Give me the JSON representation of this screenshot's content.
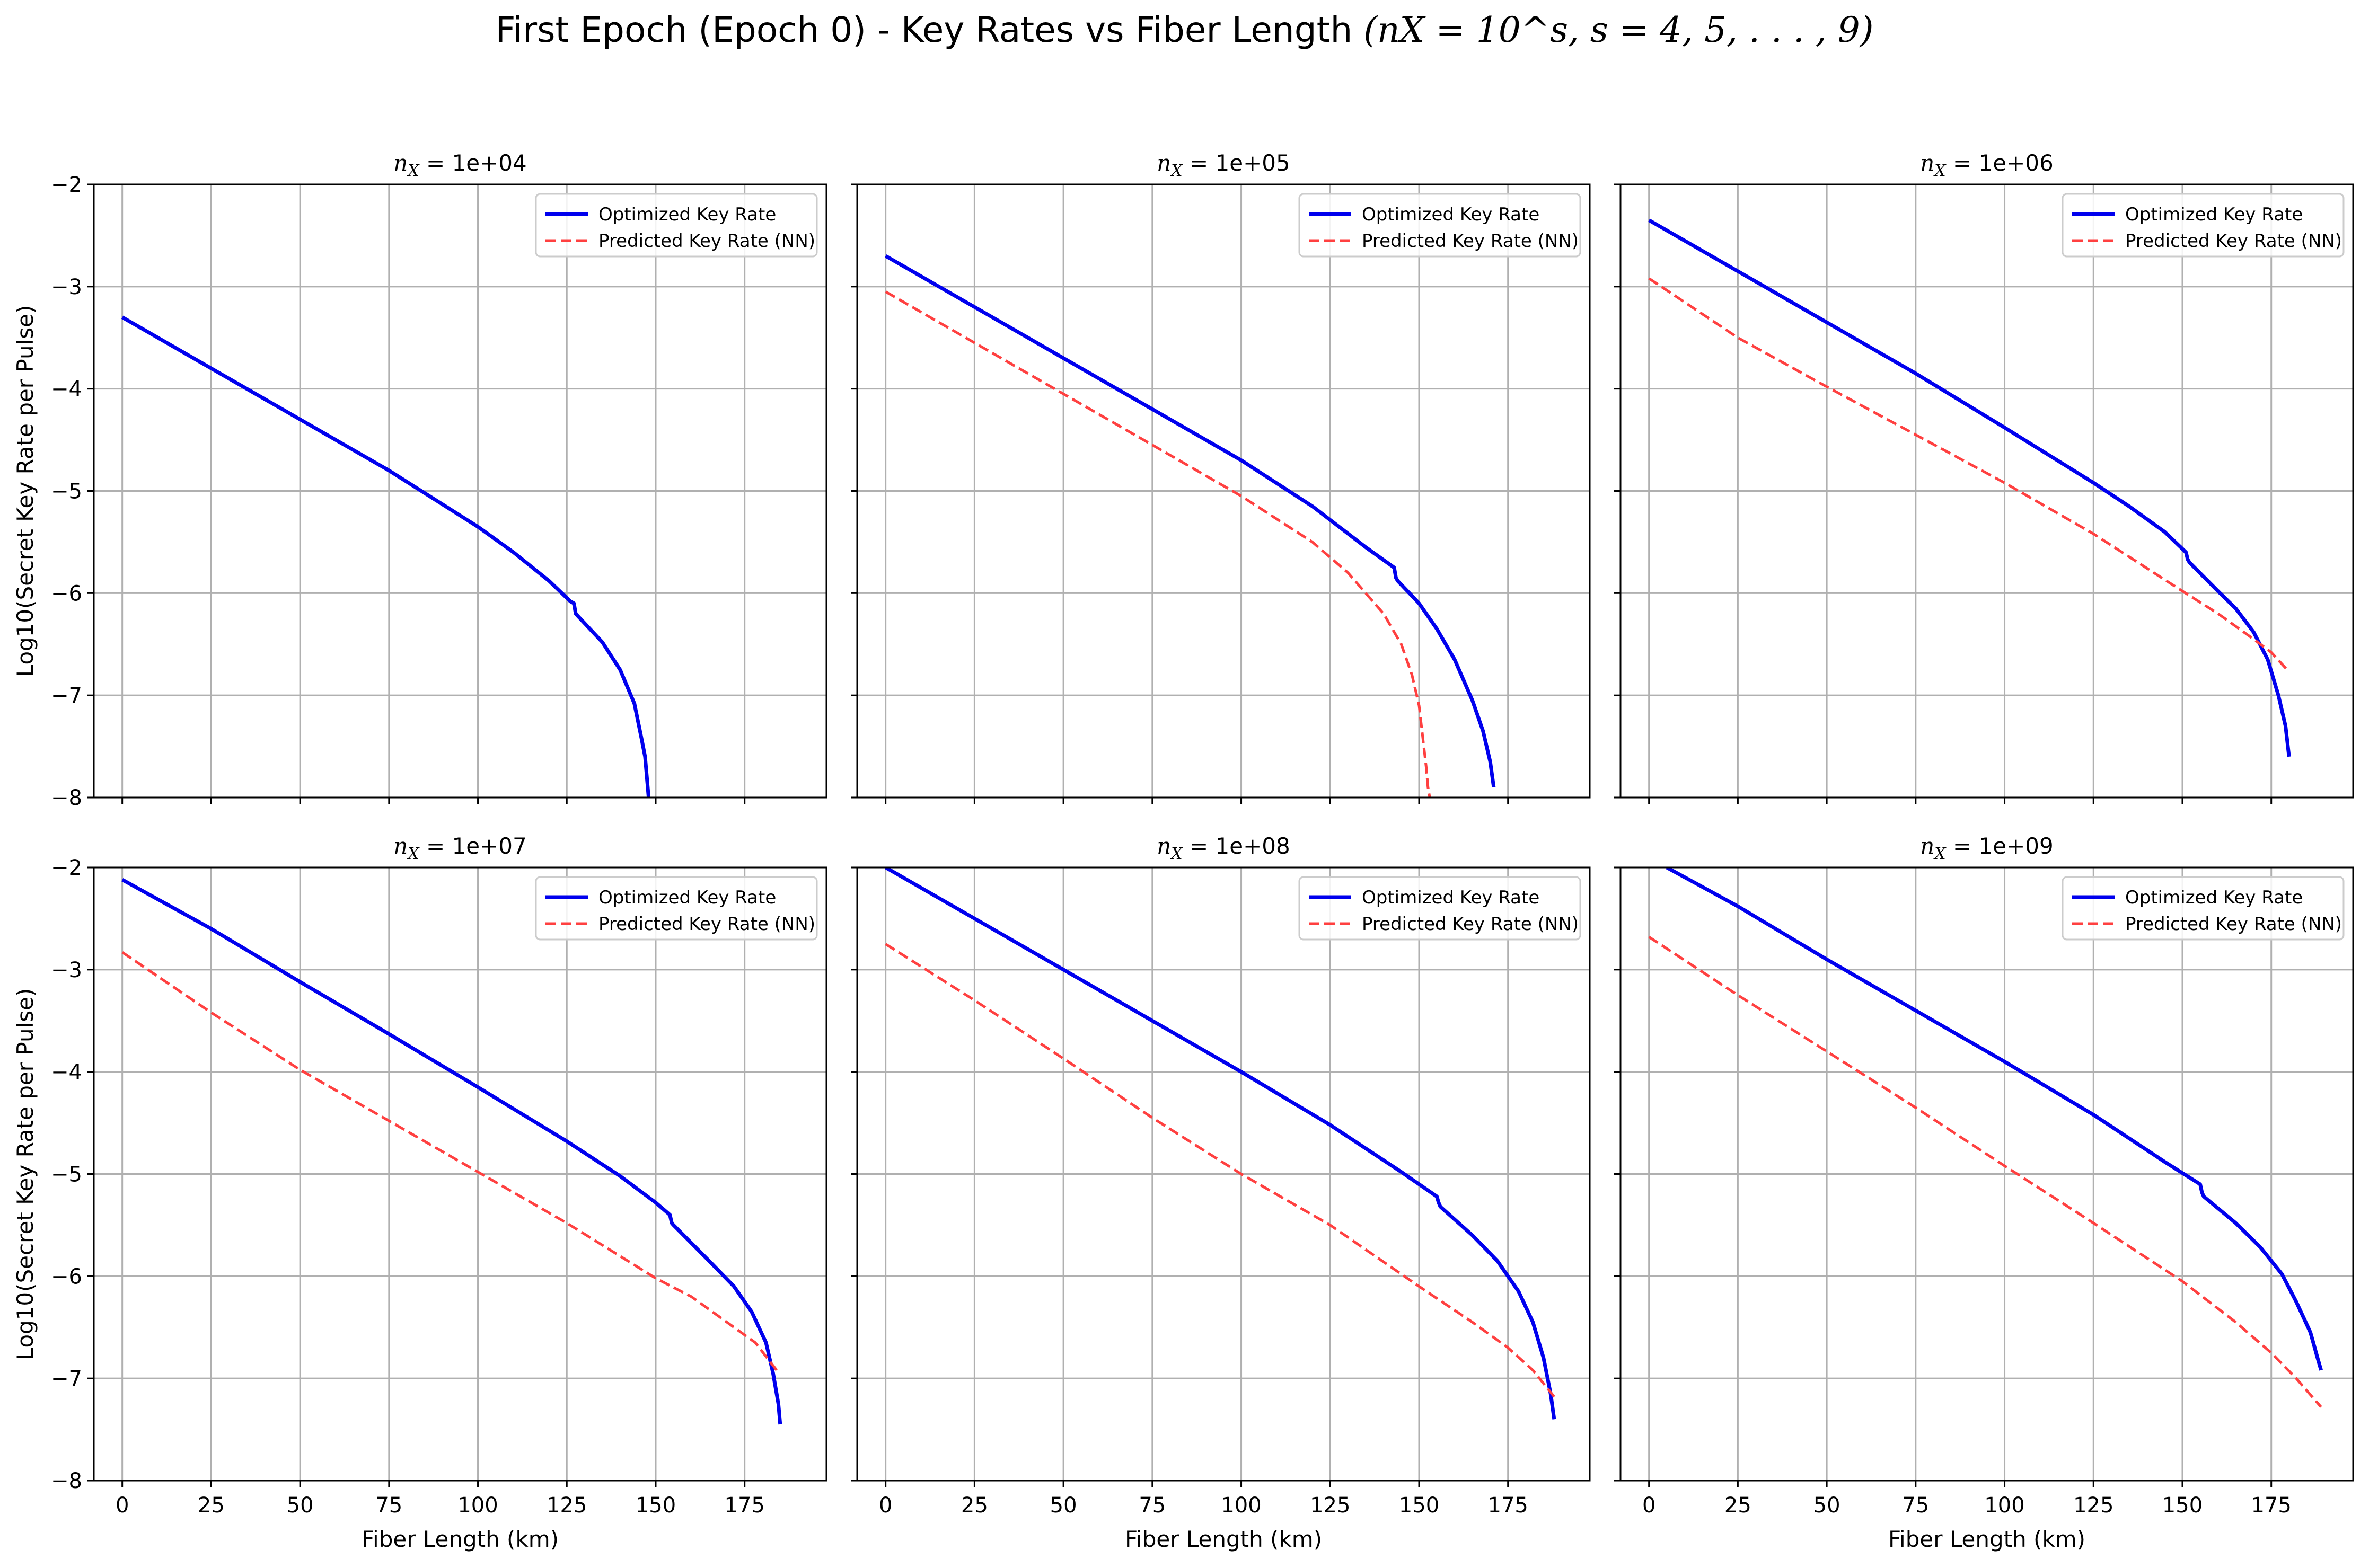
{
  "figure": {
    "title_text": "First Epoch (Epoch 0) - Key Rates vs Fiber Length",
    "title_math": "(nX = 10^s, s = 4, 5, . . . , 9)"
  },
  "shared_axes": {
    "xlabel": "Fiber Length (km)",
    "ylabel": "Log10(Secret Key Rate per Pulse)",
    "xticks": [
      "0",
      "25",
      "50",
      "75",
      "100",
      "125",
      "150",
      "175"
    ],
    "yticks": [
      "−2",
      "−3",
      "−4",
      "−5",
      "−6",
      "−7",
      "−8"
    ],
    "legend": [
      "Optimized Key Rate",
      "Predicted Key Rate (NN)"
    ]
  },
  "colors": {
    "optimized": "#0000ee",
    "predicted": "#ff4040",
    "grid": "#b0b0b0"
  },
  "chart_data": [
    {
      "type": "line",
      "title": "nX = 1e+04",
      "title_sub": "X",
      "title_value": "1e+04",
      "xlim": [
        -8,
        198
      ],
      "ylim": [
        -8,
        -2
      ],
      "grid": true,
      "legend": "top-right",
      "series": [
        {
          "name": "Optimized Key Rate",
          "style": "solid",
          "x": [
            0,
            25,
            50,
            75,
            100,
            110,
            120,
            126,
            127,
            127.5,
            128,
            135,
            140,
            144,
            146,
            147,
            148
          ],
          "y": [
            -3.3,
            -3.8,
            -4.3,
            -4.8,
            -5.35,
            -5.6,
            -5.88,
            -6.08,
            -6.1,
            -6.2,
            -6.22,
            -6.48,
            -6.75,
            -7.08,
            -7.42,
            -7.6,
            -8.0
          ]
        },
        {
          "name": "Predicted Key Rate (NN)",
          "style": "dashed",
          "x": [],
          "y": []
        }
      ]
    },
    {
      "type": "line",
      "title": "nX = 1e+05",
      "title_sub": "X",
      "title_value": "1e+05",
      "xlim": [
        -8,
        198
      ],
      "ylim": [
        -8,
        -2
      ],
      "grid": true,
      "legend": "top-right",
      "series": [
        {
          "name": "Optimized Key Rate",
          "style": "solid",
          "x": [
            0,
            25,
            50,
            75,
            100,
            120,
            135,
            143,
            143.5,
            144,
            150,
            155,
            160,
            165,
            168,
            170,
            171
          ],
          "y": [
            -2.7,
            -3.2,
            -3.7,
            -4.2,
            -4.7,
            -5.15,
            -5.55,
            -5.75,
            -5.85,
            -5.88,
            -6.1,
            -6.35,
            -6.65,
            -7.05,
            -7.35,
            -7.65,
            -7.9
          ]
        },
        {
          "name": "Predicted Key Rate (NN)",
          "style": "dashed",
          "x": [
            0,
            25,
            50,
            75,
            100,
            120,
            130,
            140,
            145,
            148,
            150,
            151,
            152,
            152.5,
            153
          ],
          "y": [
            -3.05,
            -3.55,
            -4.05,
            -4.55,
            -5.05,
            -5.5,
            -5.8,
            -6.2,
            -6.5,
            -6.8,
            -7.1,
            -7.4,
            -7.7,
            -7.9,
            -8.0
          ]
        }
      ]
    },
    {
      "type": "line",
      "title": "nX = 1e+06",
      "title_sub": "X",
      "title_value": "1e+06",
      "xlim": [
        -8,
        198
      ],
      "ylim": [
        -8,
        -2
      ],
      "grid": true,
      "legend": "top-right",
      "series": [
        {
          "name": "Optimized Key Rate",
          "style": "solid",
          "x": [
            0,
            25,
            50,
            75,
            100,
            125,
            135,
            145,
            151,
            151.5,
            152,
            160,
            165,
            170,
            174,
            177,
            179,
            180
          ],
          "y": [
            -2.35,
            -2.85,
            -3.35,
            -3.85,
            -4.38,
            -4.92,
            -5.15,
            -5.4,
            -5.6,
            -5.67,
            -5.7,
            -5.98,
            -6.15,
            -6.38,
            -6.65,
            -7.0,
            -7.3,
            -7.6
          ]
        },
        {
          "name": "Predicted Key Rate (NN)",
          "style": "dashed",
          "x": [
            0,
            25,
            50,
            75,
            100,
            125,
            150,
            160,
            170,
            175,
            180
          ],
          "y": [
            -2.92,
            -3.5,
            -3.98,
            -4.45,
            -4.92,
            -5.42,
            -5.98,
            -6.2,
            -6.45,
            -6.58,
            -6.77
          ]
        }
      ]
    },
    {
      "type": "line",
      "title": "nX = 1e+07",
      "title_sub": "X",
      "title_value": "1e+07",
      "xlim": [
        -8,
        198
      ],
      "ylim": [
        -8,
        -2
      ],
      "grid": true,
      "legend": "top-right",
      "series": [
        {
          "name": "Optimized Key Rate",
          "style": "solid",
          "x": [
            0,
            25,
            50,
            75,
            100,
            125,
            140,
            150,
            154,
            154.5,
            155,
            165,
            172,
            177,
            181,
            183,
            184.5,
            185
          ],
          "y": [
            -2.12,
            -2.6,
            -3.12,
            -3.63,
            -4.15,
            -4.68,
            -5.02,
            -5.28,
            -5.4,
            -5.48,
            -5.5,
            -5.85,
            -6.1,
            -6.35,
            -6.65,
            -6.95,
            -7.25,
            -7.45
          ]
        },
        {
          "name": "Predicted Key Rate (NN)",
          "style": "dashed",
          "x": [
            0,
            25,
            50,
            75,
            100,
            125,
            150,
            160,
            170,
            178,
            184
          ],
          "y": [
            -2.83,
            -3.42,
            -3.98,
            -4.48,
            -4.98,
            -5.48,
            -6.02,
            -6.2,
            -6.45,
            -6.65,
            -6.92
          ]
        }
      ]
    },
    {
      "type": "line",
      "title": "nX = 1e+08",
      "title_sub": "X",
      "title_value": "1e+08",
      "xlim": [
        -8,
        198
      ],
      "ylim": [
        -8,
        -2
      ],
      "grid": true,
      "legend": "top-right",
      "series": [
        {
          "name": "Optimized Key Rate",
          "style": "solid",
          "x": [
            0,
            25,
            50,
            75,
            100,
            125,
            145,
            155,
            155.5,
            156,
            165,
            172,
            178,
            182,
            185,
            187,
            188
          ],
          "y": [
            -2.0,
            -2.5,
            -3.0,
            -3.5,
            -4.0,
            -4.52,
            -4.98,
            -5.22,
            -5.28,
            -5.32,
            -5.6,
            -5.85,
            -6.15,
            -6.45,
            -6.8,
            -7.15,
            -7.4
          ]
        },
        {
          "name": "Predicted Key Rate (NN)",
          "style": "dashed",
          "x": [
            0,
            25,
            50,
            75,
            100,
            125,
            150,
            165,
            175,
            182,
            188
          ],
          "y": [
            -2.75,
            -3.3,
            -3.87,
            -4.45,
            -5.0,
            -5.5,
            -6.1,
            -6.45,
            -6.7,
            -6.92,
            -7.18
          ]
        }
      ]
    },
    {
      "type": "line",
      "title": "nX = 1e+09",
      "title_sub": "X",
      "title_value": "1e+09",
      "xlim": [
        -8,
        198
      ],
      "ylim": [
        -8,
        -2
      ],
      "grid": true,
      "legend": "top-right",
      "series": [
        {
          "name": "Optimized Key Rate",
          "style": "solid",
          "x": [
            5,
            25,
            50,
            75,
            100,
            125,
            145,
            155,
            155.5,
            156,
            165,
            172,
            178,
            182,
            186,
            188,
            189
          ],
          "y": [
            -2.0,
            -2.38,
            -2.9,
            -3.4,
            -3.9,
            -4.42,
            -4.88,
            -5.1,
            -5.18,
            -5.22,
            -5.48,
            -5.72,
            -5.98,
            -6.25,
            -6.55,
            -6.8,
            -6.92
          ]
        },
        {
          "name": "Predicted Key Rate (NN)",
          "style": "dashed",
          "x": [
            0,
            25,
            50,
            75,
            100,
            125,
            150,
            165,
            175,
            182,
            189
          ],
          "y": [
            -2.68,
            -3.25,
            -3.8,
            -4.35,
            -4.92,
            -5.48,
            -6.05,
            -6.45,
            -6.75,
            -7.0,
            -7.28
          ]
        }
      ]
    }
  ]
}
